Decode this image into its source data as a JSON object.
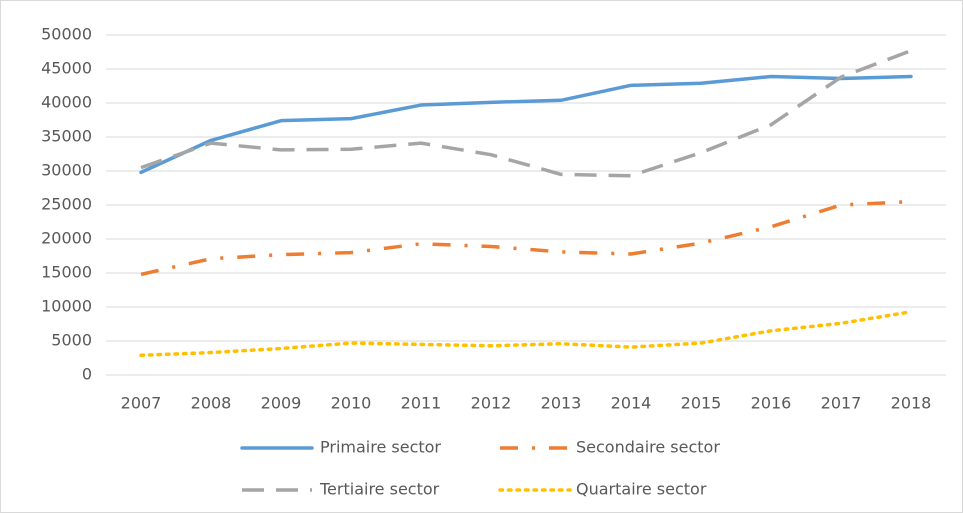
{
  "chart_data": {
    "type": "line",
    "categories": [
      "2007",
      "2008",
      "2009",
      "2010",
      "2011",
      "2012",
      "2013",
      "2014",
      "2015",
      "2016",
      "2017",
      "2018"
    ],
    "series": [
      {
        "name": "Primaire sector",
        "color": "#5b9bd5",
        "style": "solid",
        "values": [
          29800,
          34500,
          37400,
          37700,
          39700,
          40100,
          40400,
          42600,
          42900,
          43900,
          43600,
          43900
        ]
      },
      {
        "name": "Secondaire sector",
        "color": "#ed7d31",
        "style": "dashdot",
        "values": [
          14800,
          17100,
          17700,
          18000,
          19300,
          18900,
          18100,
          17800,
          19400,
          21800,
          25000,
          25500
        ]
      },
      {
        "name": "Tertiaire sector",
        "color": "#a5a5a5",
        "style": "dash",
        "values": [
          30500,
          34100,
          33100,
          33200,
          34100,
          32400,
          29500,
          29300,
          32700,
          36800,
          43800,
          47700
        ]
      },
      {
        "name": "Quartaire sector",
        "color": "#ffc000",
        "style": "dot",
        "values": [
          2900,
          3300,
          3900,
          4700,
          4500,
          4300,
          4600,
          4100,
          4700,
          6500,
          7600,
          9300
        ]
      }
    ],
    "ylim": [
      0,
      50000
    ],
    "yticks": [
      0,
      5000,
      10000,
      15000,
      20000,
      25000,
      30000,
      35000,
      40000,
      45000,
      50000
    ],
    "grid": true,
    "legend": "bottom"
  }
}
